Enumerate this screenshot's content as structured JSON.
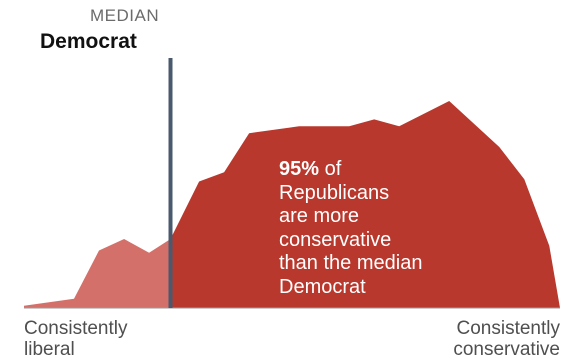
{
  "chart_data": {
    "type": "area",
    "median": {
      "kicker": "MEDIAN",
      "party": "Democrat",
      "x": 41
    },
    "x_range": [
      0,
      150
    ],
    "y_range": [
      0,
      100
    ],
    "series": [
      {
        "color": "#d4706a",
        "points": [
          [
            0,
            1
          ],
          [
            14,
            4
          ],
          [
            21,
            25
          ],
          [
            28,
            30
          ],
          [
            35,
            24
          ],
          [
            41,
            30
          ]
        ]
      },
      {
        "color": "#b8382d",
        "points": [
          [
            41,
            30
          ],
          [
            49,
            55
          ],
          [
            56,
            59
          ],
          [
            63,
            76
          ],
          [
            77,
            79
          ],
          [
            91,
            79
          ],
          [
            98,
            82
          ],
          [
            105,
            79
          ],
          [
            119,
            90
          ],
          [
            133,
            70
          ],
          [
            140,
            56
          ],
          [
            147,
            27
          ],
          [
            150,
            0
          ]
        ]
      }
    ],
    "annotation": {
      "pct": "95%",
      "text_lines": [
        "of",
        "Republicans",
        "are more",
        "conservative",
        "than the median",
        "Democrat"
      ]
    },
    "x_axis": {
      "left_label_lines": [
        "Consistently",
        "liberal"
      ],
      "right_label_lines": [
        "Consistently",
        "conservative"
      ]
    }
  }
}
